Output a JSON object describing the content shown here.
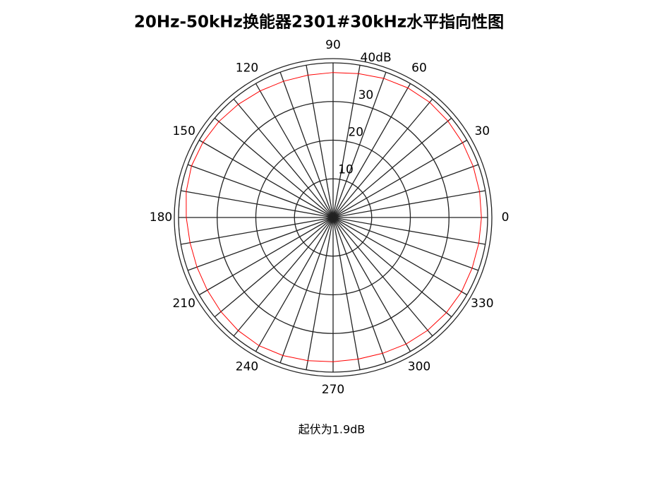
{
  "chart_data": {
    "type": "polar",
    "title": "20Hz-50kHz换能器2301#30kHz水平指向性图",
    "annotation": "起伏为1.9dB",
    "theta": [
      0,
      10,
      20,
      30,
      40,
      50,
      60,
      70,
      80,
      90,
      100,
      110,
      120,
      130,
      140,
      150,
      160,
      170,
      180,
      190,
      200,
      210,
      220,
      230,
      240,
      250,
      260,
      270,
      280,
      290,
      300,
      310,
      320,
      330,
      340,
      350
    ],
    "series": [
      {
        "name": "30kHz",
        "color": "#ff0000",
        "values": [
          38.4,
          38.5,
          38.6,
          38.7,
          38.8,
          38.9,
          38.7,
          38.3,
          37.8,
          37.5,
          37.4,
          37.5,
          37.8,
          38.2,
          38.6,
          38.9,
          39.0,
          38.6,
          38.0,
          37.6,
          37.5,
          37.6,
          37.9,
          38.2,
          38.3,
          38.0,
          37.6,
          37.3,
          37.2,
          37.4,
          37.8,
          38.1,
          38.3,
          38.4,
          38.3,
          38.3
        ]
      }
    ],
    "rlim": [
      0,
      40
    ],
    "rticks": [
      10,
      20,
      30,
      {
        "value": 40,
        "label": "40dB"
      }
    ],
    "thetaticks": [
      0,
      30,
      60,
      90,
      120,
      150,
      180,
      210,
      240,
      270,
      300,
      330
    ],
    "grid": true
  }
}
